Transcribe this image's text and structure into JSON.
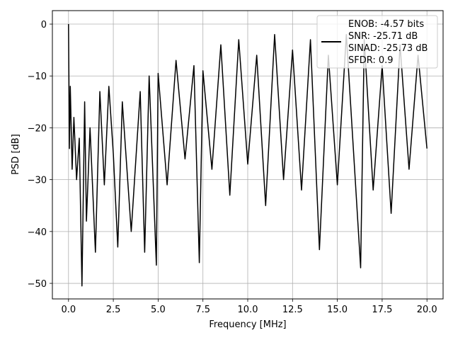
{
  "chart_data": {
    "type": "line",
    "title": "",
    "xlabel": "Frequency [MHz]",
    "ylabel": "PSD [dB]",
    "xlim": [
      -0.9,
      20.9
    ],
    "ylim": [
      -53,
      2.6
    ],
    "x_ticks": [
      0.0,
      2.5,
      5.0,
      7.5,
      10.0,
      12.5,
      15.0,
      17.5,
      20.0
    ],
    "x_tick_labels": [
      "0.0",
      "2.5",
      "5.0",
      "7.5",
      "10.0",
      "12.5",
      "15.0",
      "17.5",
      "20.0"
    ],
    "y_ticks": [
      0,
      -10,
      -20,
      -30,
      -40,
      -50
    ],
    "y_tick_labels": [
      "0",
      "−10",
      "−20",
      "−30",
      "−40",
      "−50"
    ],
    "grid": true,
    "legend_position": "top-right",
    "line_color": "#000000",
    "series": [
      {
        "name": "ENOB: -4.57 bits",
        "x": [
          0.0,
          0.05,
          0.1,
          0.2,
          0.3,
          0.45,
          0.6,
          0.75,
          0.9,
          1.0,
          1.2,
          1.5,
          1.75,
          2.0,
          2.25,
          2.5,
          2.75,
          3.0,
          3.5,
          4.0,
          4.25,
          4.5,
          4.9,
          5.0,
          5.5,
          6.0,
          6.5,
          7.0,
          7.3,
          7.5,
          8.0,
          8.5,
          9.0,
          9.5,
          10.0,
          10.5,
          11.0,
          11.5,
          12.0,
          12.5,
          13.0,
          13.5,
          14.0,
          14.5,
          15.0,
          15.5,
          16.0,
          16.3,
          16.5,
          17.0,
          17.5,
          18.0,
          18.5,
          19.0,
          19.5,
          20.0
        ],
        "y": [
          0.0,
          -24.0,
          -12.0,
          -28.0,
          -18.0,
          -30.0,
          -22.0,
          -50.5,
          -15.0,
          -38.0,
          -20.0,
          -44.0,
          -13.0,
          -31.0,
          -12.0,
          -25.0,
          -43.0,
          -15.0,
          -40.0,
          -13.0,
          -44.0,
          -10.0,
          -46.5,
          -9.5,
          -31.0,
          -7.0,
          -26.0,
          -8.0,
          -46.0,
          -9.0,
          -28.0,
          -4.0,
          -33.0,
          -3.0,
          -27.0,
          -6.0,
          -35.0,
          -2.0,
          -30.0,
          -5.0,
          -32.0,
          -3.0,
          -43.5,
          -6.0,
          -31.0,
          -2.0,
          -30.0,
          -47.0,
          -3.0,
          -32.0,
          -8.0,
          -36.5,
          -4.0,
          -28.0,
          -6.0,
          -24.0
        ]
      }
    ],
    "legend_lines": [
      "ENOB: -4.57 bits",
      "SNR: -25.71 dB",
      "SINAD: -25.73 dB",
      "SFDR: 0.9"
    ]
  }
}
